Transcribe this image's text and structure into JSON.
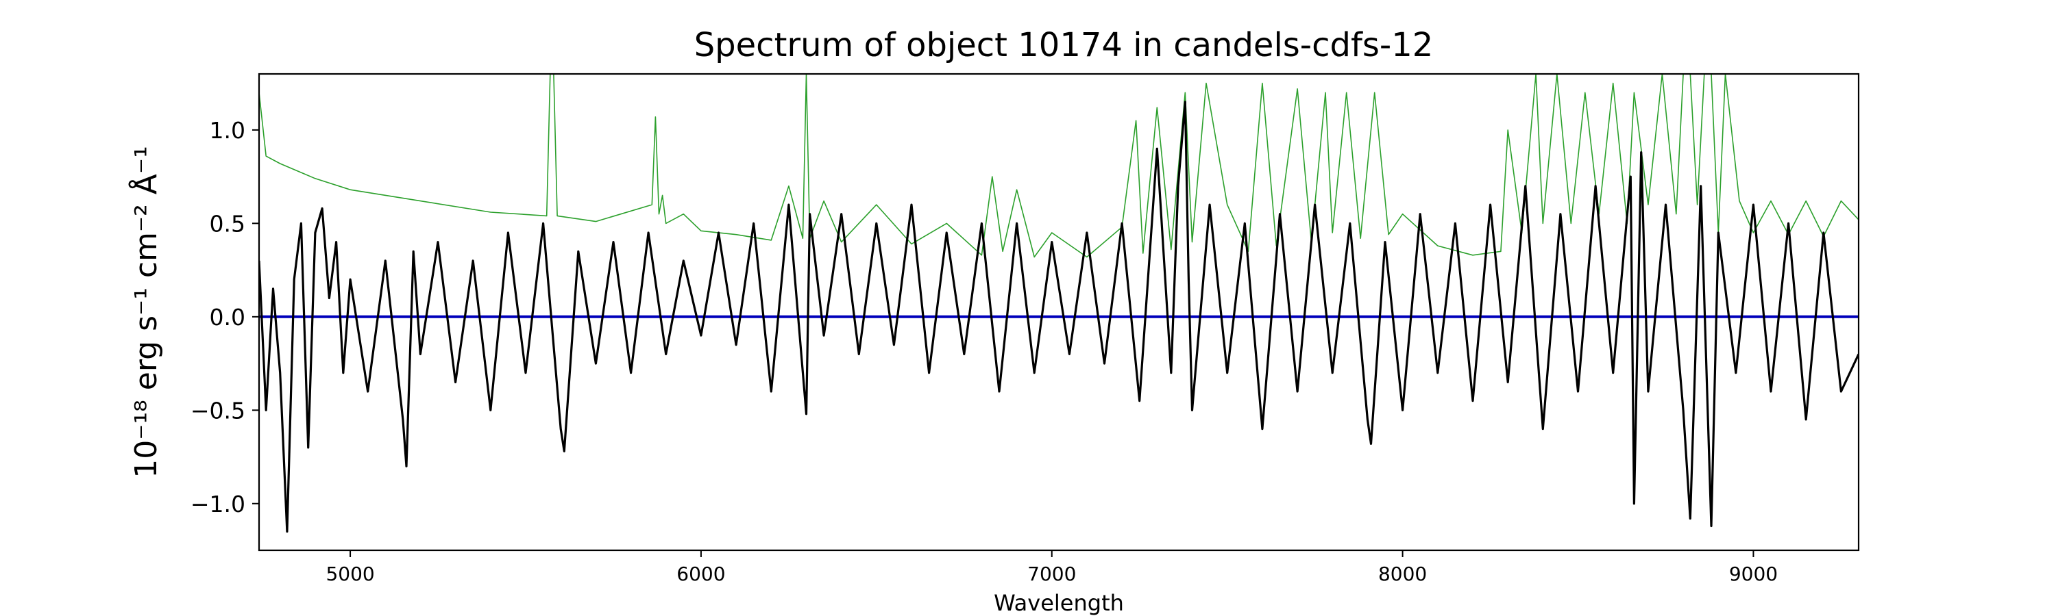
{
  "chart_data": {
    "type": "line",
    "title": "Spectrum of object 10174 in candels-cdfs-12",
    "xlabel": "Wavelength",
    "ylabel": "10⁻¹⁸ erg s⁻¹ cm⁻² Å⁻¹",
    "xlim": [
      4740,
      9300
    ],
    "ylim": [
      -1.25,
      1.3
    ],
    "xticks": [
      5000,
      6000,
      7000,
      8000,
      9000
    ],
    "yticks": [
      -1.0,
      -0.5,
      0.0,
      0.5,
      1.0
    ],
    "ytick_labels": [
      "−1.0",
      "−0.5",
      "0.0",
      "0.5",
      "1.0"
    ],
    "grid": false,
    "legend": "none",
    "series": [
      {
        "key": "error",
        "color": "#2ca02c",
        "x": [
          4740,
          4760,
          4800,
          4900,
          5000,
          5200,
          5400,
          5560,
          5570,
          5580,
          5590,
          5700,
          5860,
          5870,
          5880,
          5890,
          5900,
          5950,
          6000,
          6100,
          6200,
          6250,
          6290,
          6300,
          6310,
          6350,
          6400,
          6500,
          6600,
          6700,
          6800,
          6830,
          6860,
          6900,
          6950,
          7000,
          7100,
          7200,
          7240,
          7260,
          7300,
          7340,
          7380,
          7400,
          7440,
          7500,
          7560,
          7600,
          7640,
          7700,
          7740,
          7780,
          7800,
          7840,
          7880,
          7920,
          7960,
          8000,
          8100,
          8200,
          8280,
          8300,
          8340,
          8380,
          8400,
          8440,
          8480,
          8520,
          8560,
          8600,
          8640,
          8660,
          8700,
          8740,
          8780,
          8800,
          8820,
          8840,
          8860,
          8880,
          8900,
          8920,
          8960,
          9000,
          9050,
          9100,
          9150,
          9200,
          9250,
          9300
        ],
        "values": [
          1.2,
          0.86,
          0.82,
          0.74,
          0.68,
          0.62,
          0.56,
          0.54,
          1.3,
          1.3,
          0.54,
          0.51,
          0.6,
          1.07,
          0.55,
          0.65,
          0.5,
          0.55,
          0.46,
          0.44,
          0.41,
          0.7,
          0.42,
          1.3,
          0.42,
          0.62,
          0.4,
          0.6,
          0.39,
          0.5,
          0.33,
          0.75,
          0.35,
          0.68,
          0.32,
          0.45,
          0.32,
          0.48,
          1.05,
          0.34,
          1.12,
          0.36,
          1.2,
          0.4,
          1.25,
          0.6,
          0.35,
          1.25,
          0.38,
          1.22,
          0.4,
          1.2,
          0.45,
          1.2,
          0.42,
          1.2,
          0.44,
          0.55,
          0.38,
          0.33,
          0.35,
          1.0,
          0.45,
          1.3,
          0.5,
          1.3,
          0.5,
          1.2,
          0.55,
          1.25,
          0.5,
          1.2,
          0.6,
          1.3,
          0.55,
          1.3,
          1.3,
          0.6,
          1.3,
          1.3,
          0.45,
          1.3,
          0.62,
          0.45,
          0.62,
          0.44,
          0.62,
          0.43,
          0.62,
          0.52
        ]
      },
      {
        "key": "zero",
        "color": "#0000bb",
        "x": [
          4740,
          9300
        ],
        "values": [
          0.0,
          0.0
        ]
      },
      {
        "key": "flux",
        "color": "#000000",
        "x": [
          4740,
          4760,
          4780,
          4800,
          4820,
          4840,
          4860,
          4880,
          4900,
          4920,
          4940,
          4960,
          4980,
          5000,
          5050,
          5100,
          5150,
          5160,
          5180,
          5200,
          5250,
          5300,
          5350,
          5400,
          5450,
          5500,
          5550,
          5600,
          5610,
          5650,
          5700,
          5750,
          5800,
          5850,
          5900,
          5950,
          6000,
          6050,
          6100,
          6150,
          6200,
          6250,
          6300,
          6310,
          6350,
          6400,
          6450,
          6500,
          6550,
          6600,
          6650,
          6700,
          6750,
          6800,
          6850,
          6900,
          6950,
          7000,
          7050,
          7100,
          7150,
          7200,
          7250,
          7300,
          7340,
          7360,
          7380,
          7390,
          7400,
          7450,
          7500,
          7550,
          7600,
          7650,
          7700,
          7750,
          7800,
          7850,
          7900,
          7910,
          7950,
          8000,
          8050,
          8100,
          8150,
          8200,
          8250,
          8300,
          8350,
          8400,
          8450,
          8500,
          8550,
          8600,
          8650,
          8660,
          8680,
          8700,
          8750,
          8800,
          8820,
          8850,
          8880,
          8900,
          8950,
          9000,
          9050,
          9100,
          9150,
          9200,
          9250,
          9300
        ],
        "values": [
          0.3,
          -0.5,
          0.15,
          -0.3,
          -1.15,
          0.2,
          0.5,
          -0.7,
          0.45,
          0.58,
          0.1,
          0.4,
          -0.3,
          0.2,
          -0.4,
          0.3,
          -0.55,
          -0.8,
          0.35,
          -0.2,
          0.4,
          -0.35,
          0.3,
          -0.5,
          0.45,
          -0.3,
          0.5,
          -0.6,
          -0.72,
          0.35,
          -0.25,
          0.4,
          -0.3,
          0.45,
          -0.2,
          0.3,
          -0.1,
          0.45,
          -0.15,
          0.5,
          -0.4,
          0.6,
          -0.52,
          0.55,
          -0.1,
          0.55,
          -0.2,
          0.5,
          -0.15,
          0.6,
          -0.3,
          0.45,
          -0.2,
          0.5,
          -0.4,
          0.5,
          -0.3,
          0.4,
          -0.2,
          0.45,
          -0.25,
          0.5,
          -0.45,
          0.9,
          -0.3,
          0.7,
          1.15,
          0.2,
          -0.5,
          0.6,
          -0.3,
          0.5,
          -0.6,
          0.55,
          -0.4,
          0.6,
          -0.3,
          0.5,
          -0.55,
          -0.68,
          0.4,
          -0.5,
          0.55,
          -0.3,
          0.5,
          -0.45,
          0.6,
          -0.35,
          0.7,
          -0.6,
          0.55,
          -0.4,
          0.7,
          -0.3,
          0.75,
          -1.0,
          0.88,
          -0.4,
          0.6,
          -0.5,
          -1.08,
          0.7,
          -1.12,
          0.45,
          -0.3,
          0.6,
          -0.4,
          0.5,
          -0.55,
          0.45,
          -0.4,
          -0.2
        ]
      }
    ]
  }
}
